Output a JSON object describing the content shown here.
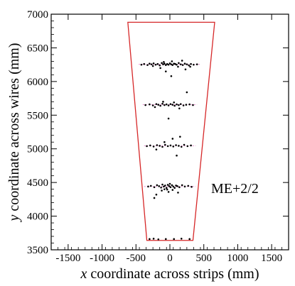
{
  "chart_data": {
    "type": "scatter",
    "title": "",
    "xlabel_var": "x",
    "xlabel_rest": " coordinate across strips (mm)",
    "ylabel_var": "y",
    "ylabel_rest": " coordinate across wires (mm)",
    "xlim": [
      -1750,
      1750
    ],
    "ylim": [
      3500,
      7000
    ],
    "xticks": [
      -1500,
      -1000,
      -500,
      0,
      500,
      1000,
      1500
    ],
    "yticks": [
      3500,
      4000,
      4500,
      5000,
      5500,
      6000,
      6500,
      7000
    ],
    "grid": false,
    "annotation": "ME+2/2",
    "outline_color": "#d62728",
    "dashed_line_color": "#e377c2",
    "point_color": "#000000",
    "chamber_outline": {
      "bottom_y": 3640,
      "bottom_x": [
        -340,
        340
      ],
      "top_y": 6880,
      "top_x": [
        -620,
        660
      ]
    },
    "hit_rows": [
      {
        "y": 6255,
        "x_range": [
          -460,
          460
        ]
      },
      {
        "y": 5655,
        "x_range": [
          -400,
          400
        ]
      },
      {
        "y": 5045,
        "x_range": [
          -380,
          380
        ]
      },
      {
        "y": 4440,
        "x_range": [
          -380,
          380
        ]
      }
    ],
    "points": [
      [
        -420,
        6250
      ],
      [
        -380,
        6260
      ],
      [
        -330,
        6245
      ],
      [
        -300,
        6265
      ],
      [
        -270,
        6255
      ],
      [
        -240,
        6270
      ],
      [
        -210,
        6250
      ],
      [
        -180,
        6260
      ],
      [
        -150,
        6240
      ],
      [
        -120,
        6275
      ],
      [
        -100,
        6255
      ],
      [
        -80,
        6265
      ],
      [
        -60,
        6245
      ],
      [
        -40,
        6260
      ],
      [
        -20,
        6250
      ],
      [
        0,
        6270
      ],
      [
        20,
        6255
      ],
      [
        40,
        6245
      ],
      [
        60,
        6265
      ],
      [
        80,
        6260
      ],
      [
        100,
        6250
      ],
      [
        130,
        6275
      ],
      [
        160,
        6255
      ],
      [
        190,
        6245
      ],
      [
        220,
        6265
      ],
      [
        250,
        6255
      ],
      [
        280,
        6240
      ],
      [
        310,
        6260
      ],
      [
        350,
        6250
      ],
      [
        400,
        6255
      ],
      [
        -90,
        6290
      ],
      [
        30,
        6300
      ],
      [
        180,
        6310
      ],
      [
        -250,
        6230
      ],
      [
        120,
        6220
      ],
      [
        -60,
        6150
      ],
      [
        20,
        6080
      ],
      [
        230,
        6180
      ],
      [
        300,
        6220
      ],
      [
        -140,
        6200
      ],
      [
        -360,
        5650
      ],
      [
        -300,
        5660
      ],
      [
        -250,
        5645
      ],
      [
        -200,
        5665
      ],
      [
        -170,
        5655
      ],
      [
        -140,
        5640
      ],
      [
        -110,
        5670
      ],
      [
        -80,
        5650
      ],
      [
        -50,
        5660
      ],
      [
        -20,
        5645
      ],
      [
        10,
        5665
      ],
      [
        40,
        5655
      ],
      [
        70,
        5640
      ],
      [
        100,
        5660
      ],
      [
        130,
        5650
      ],
      [
        160,
        5665
      ],
      [
        200,
        5645
      ],
      [
        240,
        5655
      ],
      [
        290,
        5660
      ],
      [
        340,
        5650
      ],
      [
        -100,
        5700
      ],
      [
        60,
        5690
      ],
      [
        250,
        5840
      ],
      [
        -20,
        5450
      ],
      [
        140,
        5600
      ],
      [
        -220,
        5620
      ],
      [
        -340,
        5040
      ],
      [
        -290,
        5050
      ],
      [
        -240,
        5035
      ],
      [
        -190,
        5055
      ],
      [
        -150,
        5045
      ],
      [
        -110,
        5030
      ],
      [
        -70,
        5060
      ],
      [
        -30,
        5040
      ],
      [
        10,
        5050
      ],
      [
        50,
        5035
      ],
      [
        90,
        5055
      ],
      [
        130,
        5045
      ],
      [
        170,
        5030
      ],
      [
        210,
        5060
      ],
      [
        260,
        5040
      ],
      [
        310,
        5050
      ],
      [
        150,
        5180
      ],
      [
        -80,
        5100
      ],
      [
        100,
        4900
      ],
      [
        40,
        5150
      ],
      [
        -200,
        4990
      ],
      [
        -320,
        4440
      ],
      [
        -280,
        4450
      ],
      [
        -230,
        4430
      ],
      [
        -190,
        4460
      ],
      [
        -160,
        4445
      ],
      [
        -130,
        4425
      ],
      [
        -110,
        4470
      ],
      [
        -90,
        4440
      ],
      [
        -70,
        4455
      ],
      [
        -50,
        4420
      ],
      [
        -30,
        4465
      ],
      [
        -10,
        4445
      ],
      [
        10,
        4430
      ],
      [
        30,
        4460
      ],
      [
        50,
        4440
      ],
      [
        70,
        4420
      ],
      [
        90,
        4455
      ],
      [
        110,
        4445
      ],
      [
        140,
        4430
      ],
      [
        180,
        4460
      ],
      [
        220,
        4440
      ],
      [
        270,
        4450
      ],
      [
        320,
        4435
      ],
      [
        -80,
        4400
      ],
      [
        -40,
        4395
      ],
      [
        0,
        4480
      ],
      [
        40,
        4390
      ],
      [
        -120,
        4380
      ],
      [
        -200,
        4320
      ],
      [
        -230,
        4270
      ],
      [
        120,
        4350
      ],
      [
        -20,
        4360
      ],
      [
        -300,
        3660
      ],
      [
        -240,
        3665
      ],
      [
        -170,
        3655
      ],
      [
        -60,
        3660
      ],
      [
        60,
        3660
      ],
      [
        170,
        3665
      ],
      [
        290,
        3660
      ]
    ]
  }
}
